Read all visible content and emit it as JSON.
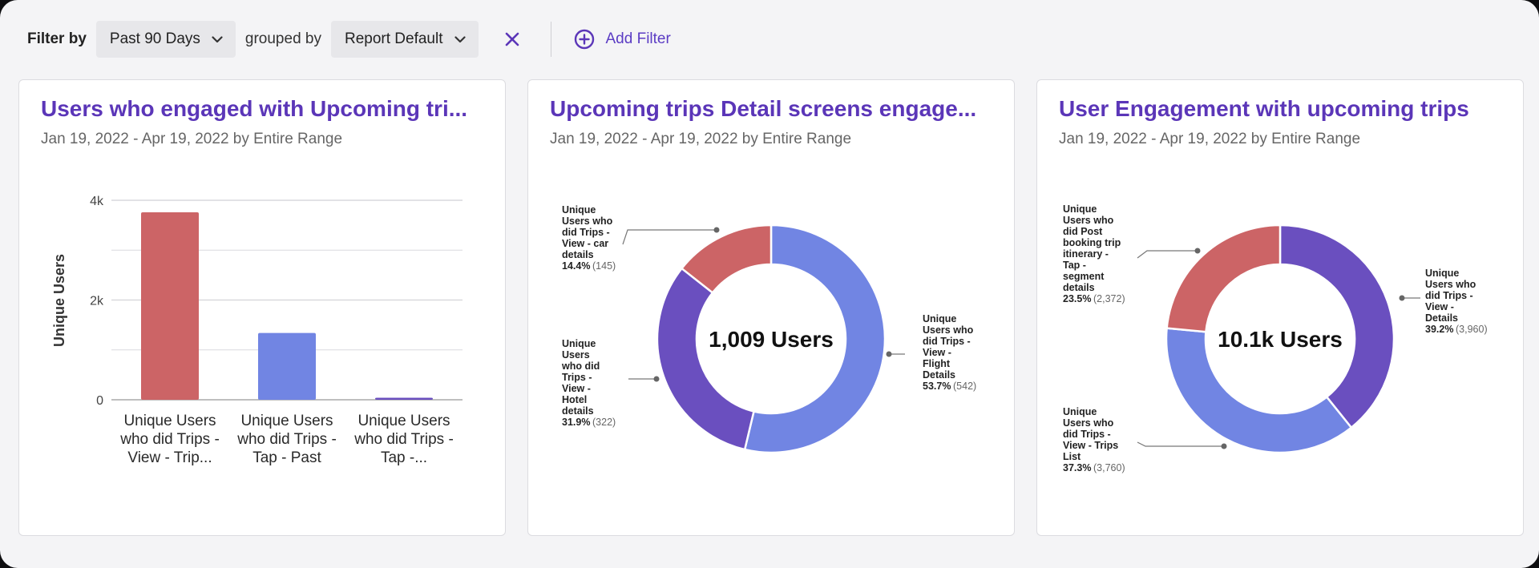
{
  "filter": {
    "filter_by_label": "Filter by",
    "date_range": "Past 90 Days",
    "grouped_by_label": "grouped by",
    "group": "Report Default",
    "add_filter_label": "Add Filter"
  },
  "colors": {
    "accent": "#5b36b8",
    "red": "#cc6466",
    "blue": "#7185e3",
    "purple": "#6a4fbf"
  },
  "cards": [
    {
      "title": "Users who engaged with Upcoming tri...",
      "subtitle": "Jan 19, 2022 - Apr 19, 2022 by Entire Range",
      "chart_data": {
        "type": "bar",
        "ylabel": "Unique Users",
        "yticks": [
          "4k",
          "2k",
          "0"
        ],
        "ylim": [
          0,
          4000
        ],
        "categories": [
          [
            "Unique Users",
            "who did Trips -",
            "View - Trip..."
          ],
          [
            "Unique Users",
            "who did Trips -",
            "Tap - Past"
          ],
          [
            "Unique Users",
            "who did Trips -",
            "Tap -..."
          ]
        ],
        "values": [
          3760,
          1340,
          40
        ],
        "colors": [
          "#cc6466",
          "#7185e3",
          "#6a4fbf"
        ]
      }
    },
    {
      "title": "Upcoming trips Detail screens engage...",
      "subtitle": "Jan 19, 2022 - Apr 19, 2022 by Entire Range",
      "chart_data": {
        "type": "pie",
        "center_text": "1,009 Users",
        "slices": [
          {
            "label": [
              "Unique",
              "Users who",
              "did Trips -",
              "View -",
              "Flight",
              "Details"
            ],
            "pct": "53.7%",
            "count": "(542)",
            "value": 542,
            "color": "#7185e3"
          },
          {
            "label": [
              "Unique",
              "Users",
              "who did",
              "Trips -",
              "View -",
              "Hotel",
              "details"
            ],
            "pct": "31.9%",
            "count": "(322)",
            "value": 322,
            "color": "#6a4fbf"
          },
          {
            "label": [
              "Unique",
              "Users who",
              "did Trips -",
              "View - car",
              "details"
            ],
            "pct": "14.4%",
            "count": "(145)",
            "value": 145,
            "color": "#cc6466"
          }
        ]
      }
    },
    {
      "title": "User Engagement with upcoming trips",
      "subtitle": "Jan 19, 2022 - Apr 19, 2022 by Entire Range",
      "chart_data": {
        "type": "pie",
        "center_text": "10.1k Users",
        "slices": [
          {
            "label": [
              "Unique",
              "Users who",
              "did Trips -",
              "View -",
              "Details"
            ],
            "pct": "39.2%",
            "count": "(3,960)",
            "value": 3960,
            "color": "#6a4fbf"
          },
          {
            "label": [
              "Unique",
              "Users who",
              "did Trips -",
              "View - Trips",
              "List"
            ],
            "pct": "37.3%",
            "count": "(3,760)",
            "value": 3760,
            "color": "#7185e3"
          },
          {
            "label": [
              "Unique",
              "Users who",
              "did Post",
              "booking trip",
              "itinerary -",
              "Tap -",
              "segment",
              "details"
            ],
            "pct": "23.5%",
            "count": "(2,372)",
            "value": 2372,
            "color": "#cc6466"
          }
        ]
      }
    }
  ]
}
